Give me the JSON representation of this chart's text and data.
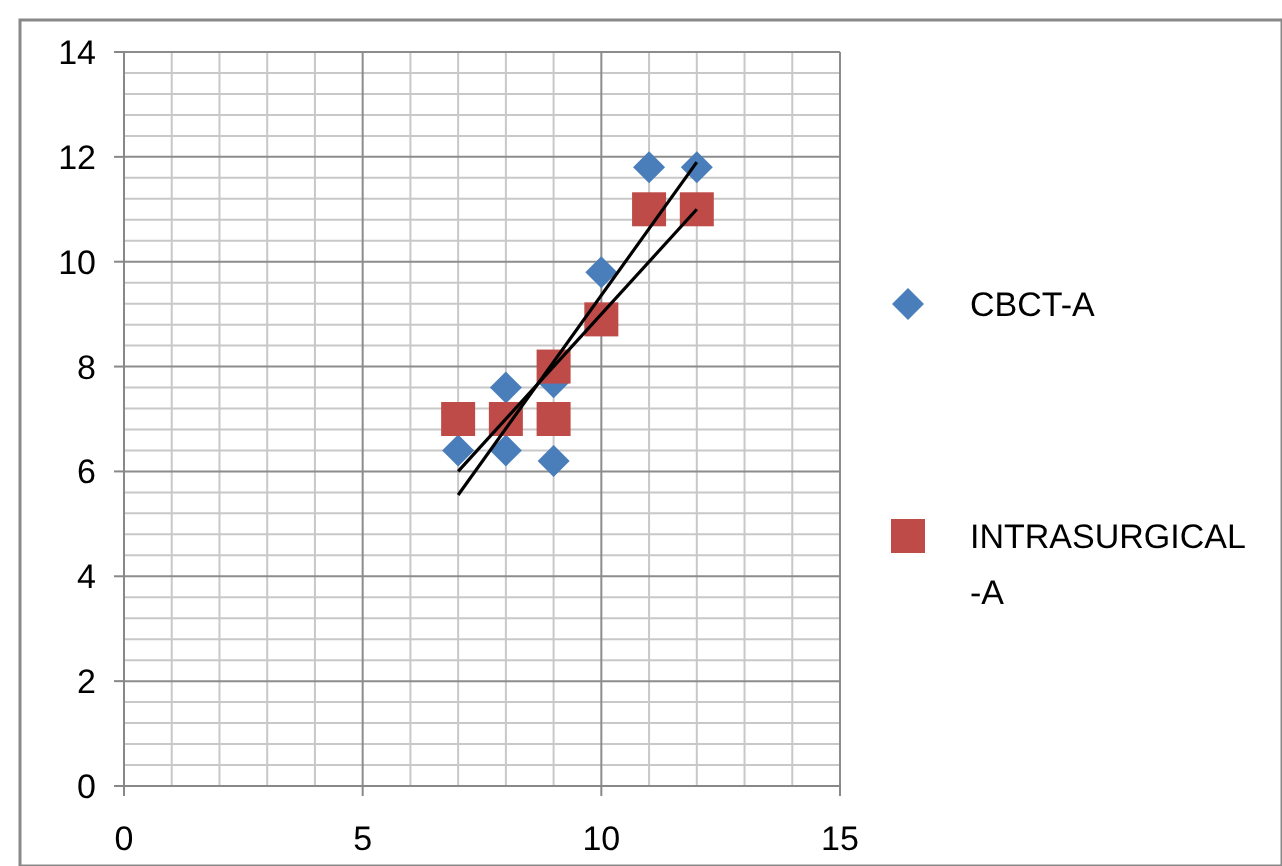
{
  "chart_data": {
    "type": "scatter",
    "xlim": [
      0,
      15
    ],
    "xticks": [
      0,
      5,
      10,
      15
    ],
    "ylim": [
      0,
      14
    ],
    "yticks": [
      0,
      2,
      4,
      6,
      8,
      10,
      12,
      14
    ],
    "grid": true,
    "legend": "right",
    "series": [
      {
        "name": "CBCT-A",
        "marker": "diamond",
        "color": "#4a7ebb",
        "x": [
          7,
          8,
          8,
          9,
          9,
          10,
          11,
          12
        ],
        "values": [
          6.4,
          7.6,
          6.4,
          6.2,
          7.7,
          9.8,
          11.8,
          11.8
        ]
      },
      {
        "name": "INTRASURGICAL -A",
        "marker": "square",
        "color": "#be4b48",
        "x": [
          7,
          8,
          9,
          9,
          10,
          11,
          12
        ],
        "values": [
          7,
          7,
          7,
          8,
          8.9,
          11,
          11
        ]
      },
      {
        "type": "line",
        "color": "#000000",
        "x": [
          7,
          12
        ],
        "values": [
          5.55,
          11.9
        ]
      },
      {
        "type": "line",
        "color": "#000000",
        "x": [
          7,
          12
        ],
        "values": [
          6.0,
          11.0
        ]
      }
    ]
  }
}
